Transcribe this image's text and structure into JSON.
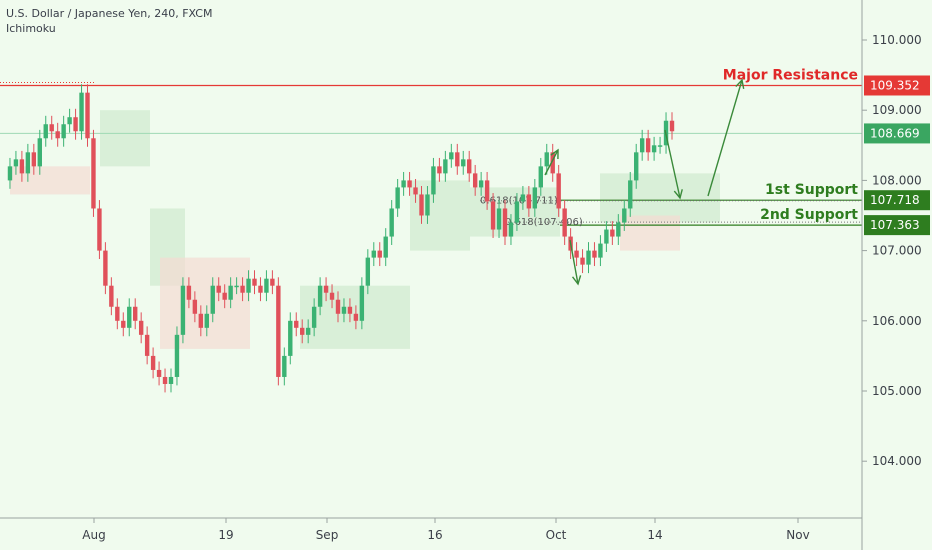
{
  "header": {
    "symbol_line": "U.S. Dollar / Japanese Yen, 240, FXCM",
    "indicator": "Ichimoku"
  },
  "chart_data": {
    "type": "candlestick",
    "x_ticks": [
      "Aug",
      "19",
      "Sep",
      "16",
      "Oct",
      "14",
      "Nov"
    ],
    "y_ticks": [
      110.0,
      109.0,
      108.0,
      107.0,
      106.0,
      105.0,
      104.0
    ],
    "ylim": [
      103.2,
      110.5
    ],
    "last_price": 108.669,
    "levels": [
      {
        "name": "Major Resistance",
        "value": 109.352,
        "color": "#e53935"
      },
      {
        "name": "1st Support",
        "value": 107.718,
        "color": "#2e7d1f"
      },
      {
        "name": "2nd Support",
        "value": 107.363,
        "color": "#2e7d1f"
      }
    ],
    "fib_labels": [
      "0.618(107.711)",
      "0.618(107.406)"
    ],
    "price_path": [
      108.0,
      108.2,
      108.3,
      108.1,
      108.4,
      108.2,
      108.6,
      108.8,
      108.7,
      108.6,
      108.8,
      108.9,
      108.7,
      109.25,
      108.6,
      107.6,
      107.0,
      106.5,
      106.2,
      106.0,
      105.9,
      106.2,
      106.0,
      105.8,
      105.5,
      105.3,
      105.2,
      105.1,
      105.2,
      105.8,
      106.5,
      106.3,
      106.1,
      105.9,
      106.1,
      106.5,
      106.4,
      106.3,
      106.5,
      106.5,
      106.4,
      106.6,
      106.5,
      106.4,
      106.6,
      106.5,
      105.2,
      105.5,
      106.0,
      105.9,
      105.8,
      105.9,
      106.2,
      106.5,
      106.4,
      106.3,
      106.1,
      106.2,
      106.1,
      106.0,
      106.5,
      106.9,
      107.0,
      106.9,
      107.2,
      107.6,
      107.9,
      108.0,
      107.9,
      107.8,
      107.5,
      107.8,
      108.2,
      108.1,
      108.3,
      108.4,
      108.2,
      108.3,
      108.1,
      107.9,
      108.0,
      107.7,
      107.3,
      107.6,
      107.2,
      107.4,
      107.7,
      107.8,
      107.6,
      107.9,
      108.2,
      108.4,
      108.1,
      107.6,
      107.2,
      107.0,
      106.9,
      106.8,
      107.0,
      106.9,
      107.1,
      107.3,
      107.2,
      107.4,
      107.6,
      108.0,
      108.4,
      108.6,
      108.4,
      108.5,
      108.5,
      108.85,
      108.7
    ],
    "projection_arrows": [
      "down-then-up"
    ]
  },
  "colors": {
    "background": "#f0fbee",
    "up_candle": "#3bb273",
    "down_candle": "#e0505a",
    "cloud_green": "#cfe9cf",
    "cloud_red": "#f3dcd3",
    "resistance": "#e53935",
    "support": "#2e7d1f",
    "price_badge": "#3aa661"
  }
}
